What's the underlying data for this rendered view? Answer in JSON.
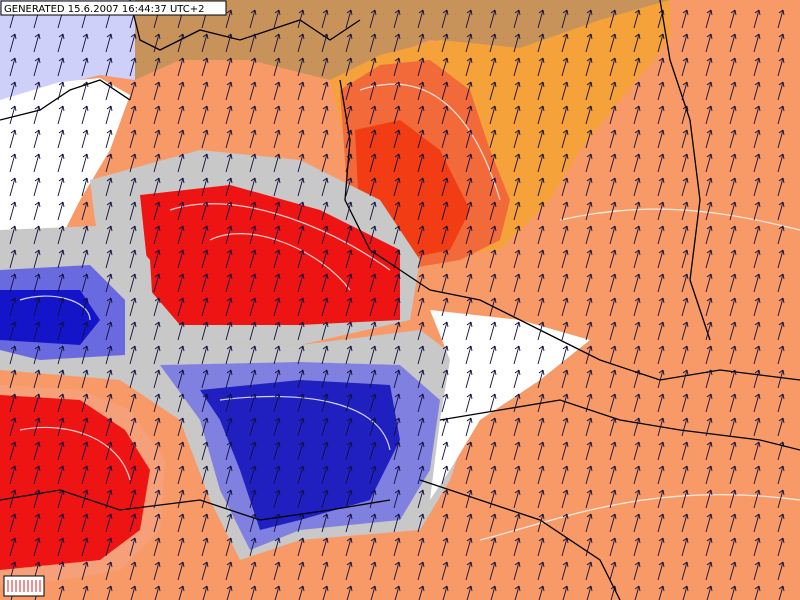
{
  "header": {
    "title": "GENERATED 15.6.2007 16:44:37 UTC+2"
  }
}
